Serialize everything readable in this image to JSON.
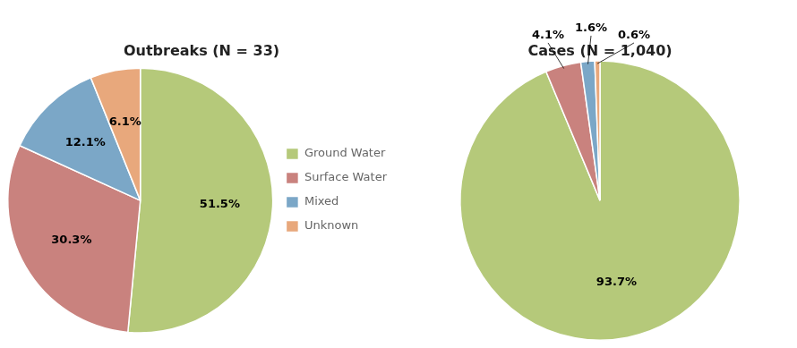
{
  "chart_data": [
    {
      "type": "pie",
      "title": "Outbreaks (N = 33)",
      "categories": [
        "Ground Water",
        "Surface Water",
        "Mixed",
        "Unknown"
      ],
      "values": [
        51.5,
        30.3,
        12.1,
        6.1
      ],
      "value_labels": [
        "51.5%",
        "30.3%",
        "12.1%",
        "6.1%"
      ],
      "colors": [
        "#b5c97a",
        "#c9827e",
        "#7ba7c7",
        "#e8a87c"
      ],
      "data_labels": true,
      "legend": "right"
    },
    {
      "type": "pie",
      "title": "Cases (N = 1,040)",
      "categories": [
        "Ground Water",
        "Surface Water",
        "Mixed",
        "Unknown"
      ],
      "values": [
        93.7,
        4.1,
        1.6,
        0.6
      ],
      "value_labels": [
        "93.7%",
        "4.1%",
        "1.6%",
        "0.6%"
      ],
      "colors": [
        "#b5c97a",
        "#c9827e",
        "#7ba7c7",
        "#e8a87c"
      ],
      "data_labels": true
    }
  ]
}
